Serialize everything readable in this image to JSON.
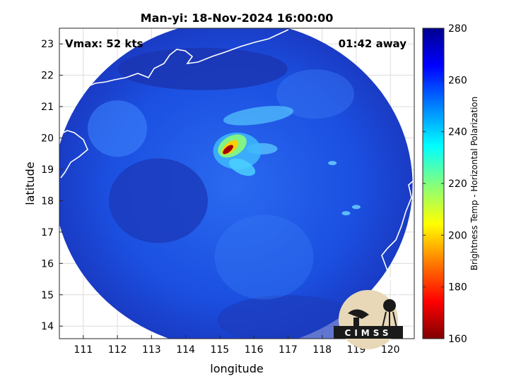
{
  "chart_data": {
    "type": "heatmap",
    "title": "Man-yi: 18-Nov-2024 16:00:00",
    "xlabel": "longitude",
    "ylabel": "latitude",
    "xlim": [
      110.3,
      120.7
    ],
    "ylim": [
      13.6,
      23.5
    ],
    "xticks": [
      111,
      112,
      113,
      114,
      115,
      116,
      117,
      118,
      119,
      120
    ],
    "yticks": [
      14,
      15,
      16,
      17,
      18,
      19,
      20,
      21,
      22,
      23
    ],
    "grid": true,
    "annotations": {
      "vmax": "Vmax: 52 kts",
      "time_offset": "01:42 away"
    },
    "colorbar": {
      "label": "Brightness Temp - Horizontal Polarization",
      "range": [
        160,
        280
      ],
      "ticks": [
        160,
        180,
        200,
        220,
        240,
        260,
        280
      ],
      "colormap": [
        "#7f0000",
        "#ff0000",
        "#ff8000",
        "#ffff00",
        "#80ff80",
        "#00ffff",
        "#0080ff",
        "#0000ff",
        "#00008f"
      ]
    },
    "swath": {
      "center_lon": 115.4,
      "center_lat": 18.5,
      "radius_deg": 5.25
    },
    "cyclone_center": {
      "lon": 115.2,
      "lat": 19.7,
      "min_brightness_temp": 165
    },
    "logo_text": "CIMSS",
    "colors": {
      "background_cold": "#1e3fc8",
      "swath_mid": "#1c52e6",
      "rainband": "#4fb4ff",
      "eyewall": "#a00000"
    }
  }
}
